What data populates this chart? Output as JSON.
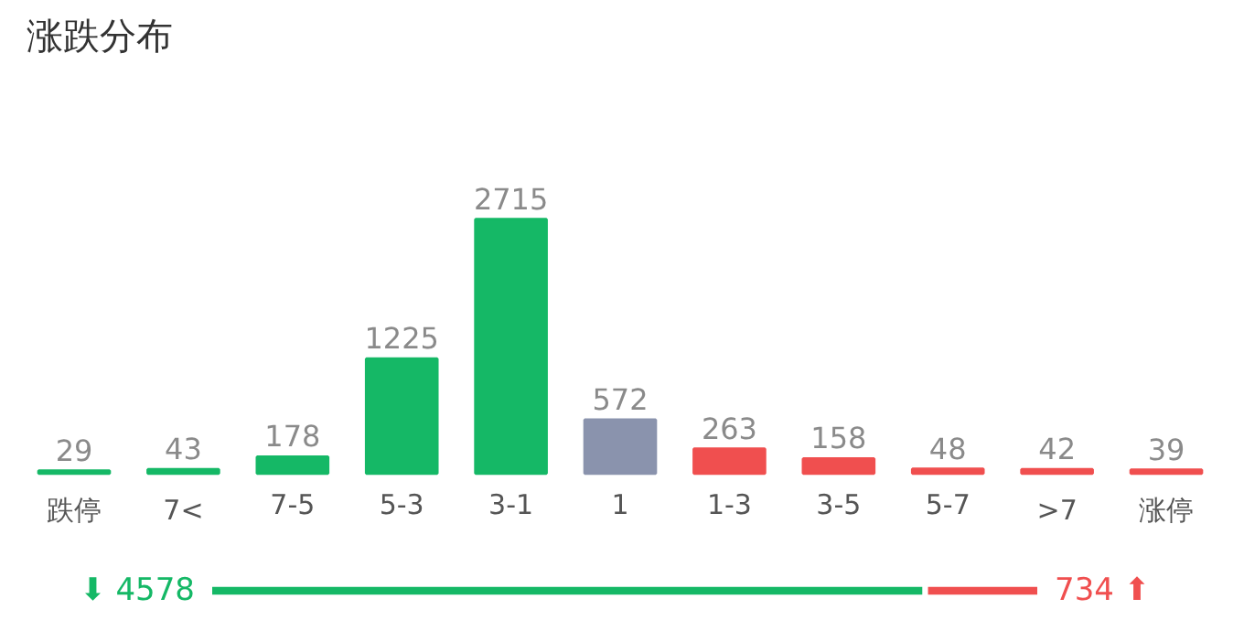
{
  "chart_data": [
    {
      "type": "bar",
      "title": "涨跌分布",
      "categories": [
        "跌停",
        "7<",
        "7-5",
        "5-3",
        "3-1",
        "1",
        "1-3",
        "3-5",
        "5-7",
        ">7",
        "涨停"
      ],
      "values": [
        29,
        43,
        178,
        1225,
        2715,
        572,
        263,
        158,
        48,
        42,
        39
      ],
      "colors": [
        "#15b866",
        "#15b866",
        "#15b866",
        "#15b866",
        "#15b866",
        "#8a93ad",
        "#f04f4f",
        "#f04f4f",
        "#f04f4f",
        "#f04f4f",
        "#f04f4f"
      ],
      "data_labels": true
    },
    {
      "type": "bar",
      "orientation": "horizontal",
      "stacked": true,
      "categories": [
        null
      ],
      "series": [
        {
          "color": "#15b866",
          "values": [
            4578
          ],
          "value_labels": [
            "⬇ 4578"
          ]
        },
        {
          "color": "#f04f4f",
          "values": [
            734
          ],
          "value_labels": [
            "734 ⬆"
          ]
        }
      ]
    }
  ]
}
